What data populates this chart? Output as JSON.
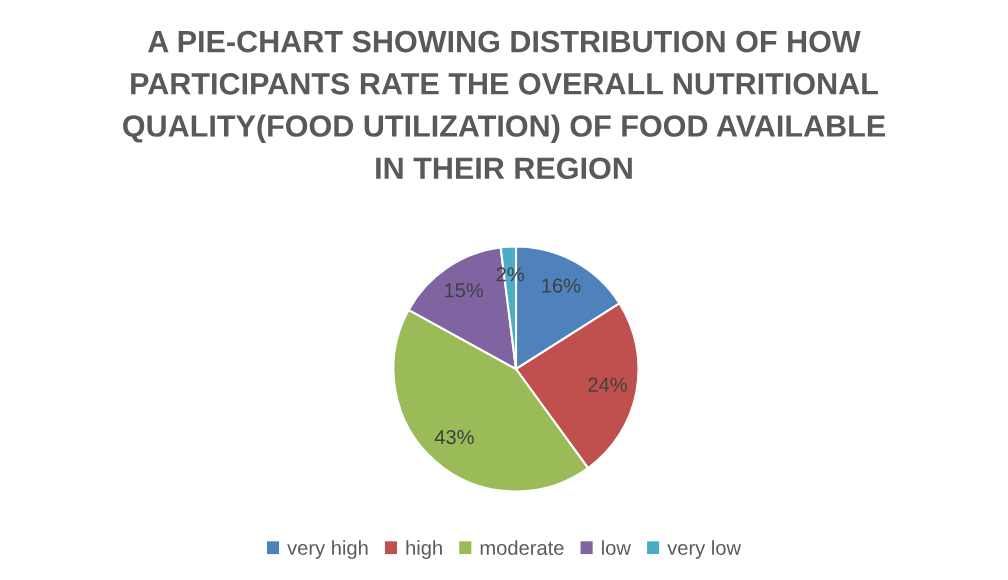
{
  "chart_data": {
    "type": "pie",
    "title": "A PIE-CHART SHOWING DISTRIBUTION OF HOW\nPARTICIPANTS RATE THE OVERALL NUTRITIONAL\nQUALITY(FOOD UTILIZATION) OF FOOD AVAILABLE\nIN THEIR REGION",
    "categories": [
      "very high",
      "high",
      "moderate",
      "low",
      "very low"
    ],
    "values": [
      16,
      24,
      43,
      15,
      2
    ],
    "colors": [
      "#4f81bd",
      "#c0504d",
      "#9bbb59",
      "#8064a2",
      "#4bacc6"
    ],
    "value_labels": [
      "16%",
      "24%",
      "43%",
      "15%",
      "2%"
    ],
    "legend": "bottom"
  }
}
